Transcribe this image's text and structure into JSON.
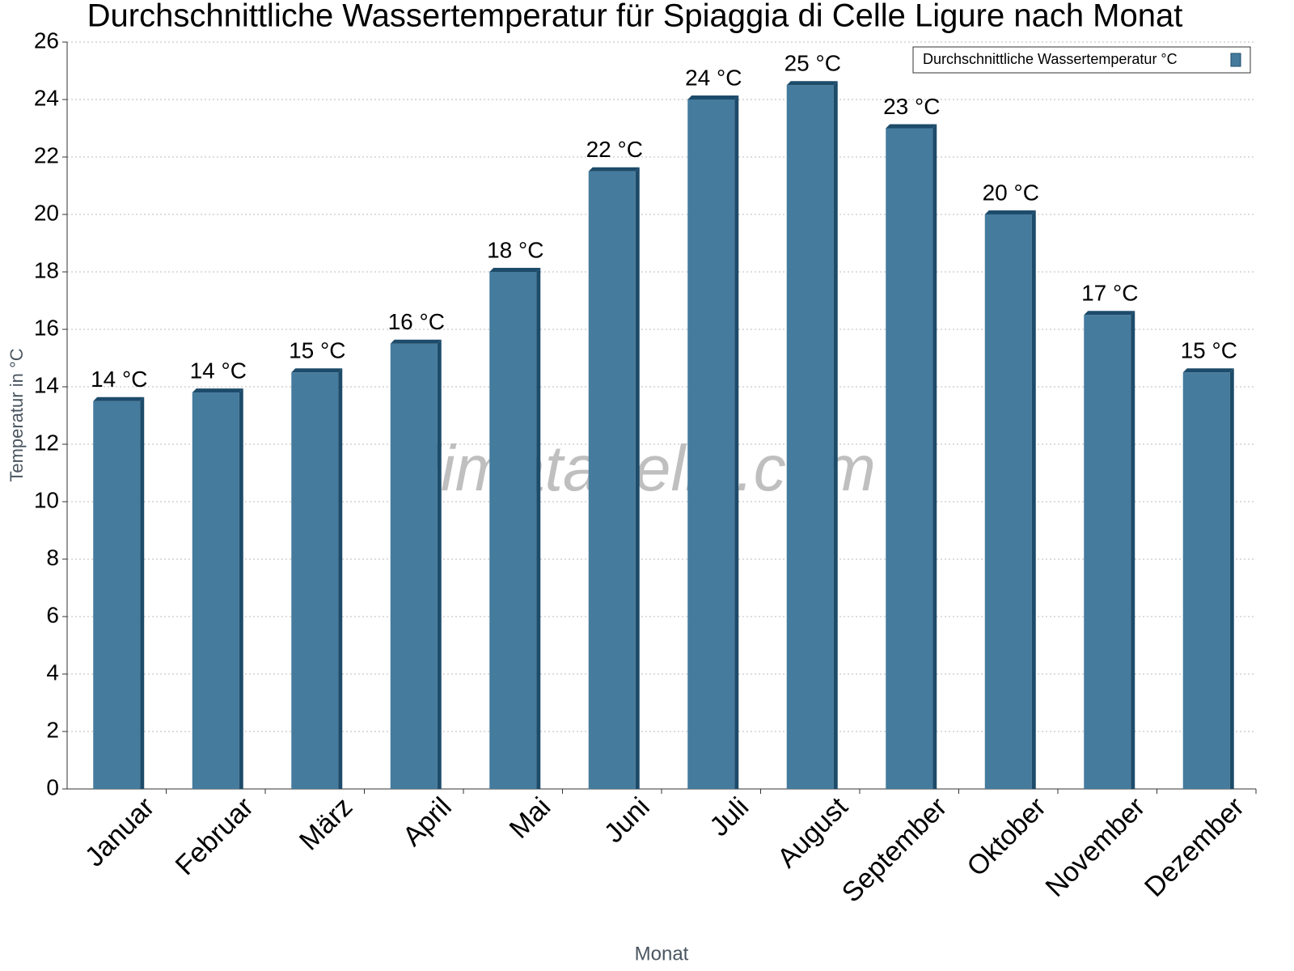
{
  "chart_data": {
    "type": "bar",
    "title": "Durchschnittliche Wassertemperatur für Spiaggia di Celle Ligure nach Monat",
    "x_label": "Monat",
    "y_label": "Temperatur in °C",
    "watermark": "klimatabelle.com",
    "categories": [
      "Januar",
      "Februar",
      "März",
      "April",
      "Mai",
      "Juni",
      "Juli",
      "August",
      "September",
      "Oktober",
      "November",
      "Dezember"
    ],
    "series": [
      {
        "name": "Durchschnittliche Wassertemperatur °C",
        "color": "#457b9d",
        "values": [
          13.5,
          13.8,
          14.5,
          15.5,
          18,
          21.5,
          24,
          24.5,
          23,
          20,
          16.5,
          14.5
        ],
        "value_labels": [
          "14 °C",
          "14 °C",
          "15 °C",
          "16 °C",
          "18 °C",
          "22 °C",
          "24 °C",
          "25 °C",
          "23 °C",
          "20 °C",
          "17 °C",
          "15 °C"
        ]
      }
    ],
    "ylim": [
      0,
      26
    ],
    "yticks": [
      0,
      2,
      4,
      6,
      8,
      10,
      12,
      14,
      16,
      18,
      20,
      22,
      24,
      26
    ],
    "grid": true,
    "legend": "top-right"
  }
}
